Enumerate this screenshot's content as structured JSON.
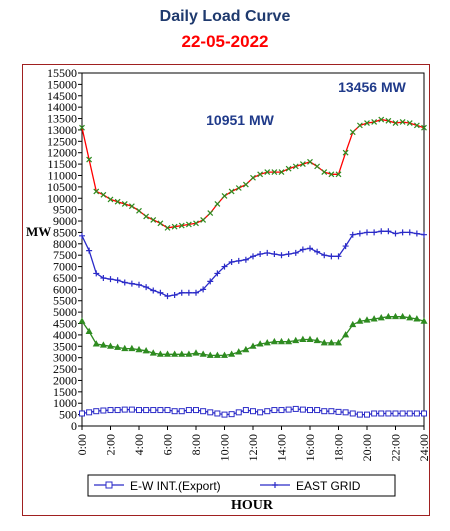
{
  "title": "Daily Load Curve",
  "date": "22-05-2022",
  "chart_data": {
    "type": "line",
    "ylabel": "MW",
    "xlabel": "HOUR",
    "ylim": [
      0,
      15500
    ],
    "yticks": [
      0,
      500,
      1000,
      1500,
      2000,
      2500,
      3000,
      3500,
      4000,
      4500,
      5000,
      5500,
      6000,
      6500,
      7000,
      7500,
      8000,
      8500,
      9000,
      9500,
      10000,
      10500,
      11000,
      11500,
      12000,
      12500,
      13000,
      13500,
      14000,
      14500,
      15000,
      15500
    ],
    "ytick_labels": [
      "0",
      "500",
      "1000",
      "1500",
      "2000",
      "2500",
      "3000",
      "3500",
      "4000",
      "4500",
      "5000",
      "5500",
      "6000",
      "6500",
      "7000",
      "7500",
      "8000",
      "8500",
      "9000",
      "9500",
      "10000",
      "10500",
      "11000",
      "11500",
      "12000",
      "12500",
      "13000",
      "13500",
      "14000",
      "14500",
      "15000",
      "15500"
    ],
    "xlim": [
      0,
      24
    ],
    "xticks": [
      0,
      2,
      4,
      6,
      8,
      10,
      12,
      14,
      16,
      18,
      20,
      22,
      24
    ],
    "xtick_labels": [
      "0:00",
      "2:00",
      "4:00",
      "6:00",
      "8:00",
      "10:00",
      "12:00",
      "14:00",
      "16:00",
      "18:00",
      "20:00",
      "22:00",
      "24:00"
    ],
    "x": [
      0,
      0.5,
      1,
      1.5,
      2,
      2.5,
      3,
      3.5,
      4,
      4.5,
      5,
      5.5,
      6,
      6.5,
      7,
      7.5,
      8,
      8.5,
      9,
      9.5,
      10,
      10.5,
      11,
      11.5,
      12,
      12.5,
      13,
      13.5,
      14,
      14.5,
      15,
      15.5,
      16,
      16.5,
      17,
      17.5,
      18,
      18.5,
      19,
      19.5,
      20,
      20.5,
      21,
      21.5,
      22,
      22.5,
      23,
      23.5,
      24
    ],
    "series": [
      {
        "color": "#ff0000",
        "marker": "x",
        "values": [
          13100,
          11700,
          10300,
          10150,
          9950,
          9850,
          9750,
          9650,
          9450,
          9200,
          9050,
          8900,
          8700,
          8750,
          8800,
          8850,
          8900,
          9050,
          9350,
          9750,
          10100,
          10300,
          10450,
          10600,
          10900,
          11050,
          11150,
          11150,
          11150,
          11300,
          11400,
          11500,
          11600,
          11400,
          11150,
          11050,
          11050,
          12000,
          12900,
          13200,
          13300,
          13350,
          13456,
          13400,
          13300,
          13350,
          13300,
          13200,
          13100
        ]
      },
      {
        "name": "EAST GRID",
        "color": "#2b2bc8",
        "marker": "+",
        "values": [
          8350,
          7700,
          6700,
          6500,
          6450,
          6400,
          6300,
          6250,
          6200,
          6100,
          5950,
          5850,
          5700,
          5750,
          5850,
          5850,
          5850,
          6000,
          6350,
          6700,
          7000,
          7200,
          7250,
          7300,
          7450,
          7550,
          7600,
          7550,
          7500,
          7550,
          7600,
          7750,
          7800,
          7650,
          7500,
          7450,
          7450,
          7900,
          8400,
          8450,
          8500,
          8500,
          8550,
          8550,
          8450,
          8500,
          8500,
          8450,
          8400
        ]
      },
      {
        "color": "#2e8b20",
        "marker": "triangle",
        "values": [
          4600,
          4150,
          3600,
          3550,
          3500,
          3450,
          3400,
          3400,
          3350,
          3300,
          3200,
          3150,
          3150,
          3150,
          3150,
          3150,
          3200,
          3150,
          3100,
          3100,
          3100,
          3150,
          3250,
          3350,
          3500,
          3600,
          3650,
          3700,
          3700,
          3700,
          3750,
          3800,
          3800,
          3750,
          3650,
          3650,
          3650,
          4000,
          4450,
          4600,
          4650,
          4700,
          4750,
          4800,
          4800,
          4800,
          4750,
          4700,
          4600
        ]
      },
      {
        "name": "E-W INT.(Export)",
        "color": "#2b2bc8",
        "marker": "square",
        "values": [
          550,
          600,
          650,
          680,
          700,
          700,
          720,
          720,
          700,
          700,
          700,
          700,
          700,
          650,
          650,
          700,
          700,
          650,
          600,
          550,
          500,
          520,
          600,
          700,
          650,
          600,
          650,
          700,
          700,
          720,
          750,
          720,
          700,
          700,
          650,
          650,
          620,
          600,
          550,
          500,
          500,
          550,
          550,
          550,
          550,
          550,
          550,
          550,
          550
        ]
      }
    ],
    "annotations": [
      "13456 MW",
      "10951 MW"
    ],
    "legend_position": "bottom"
  }
}
